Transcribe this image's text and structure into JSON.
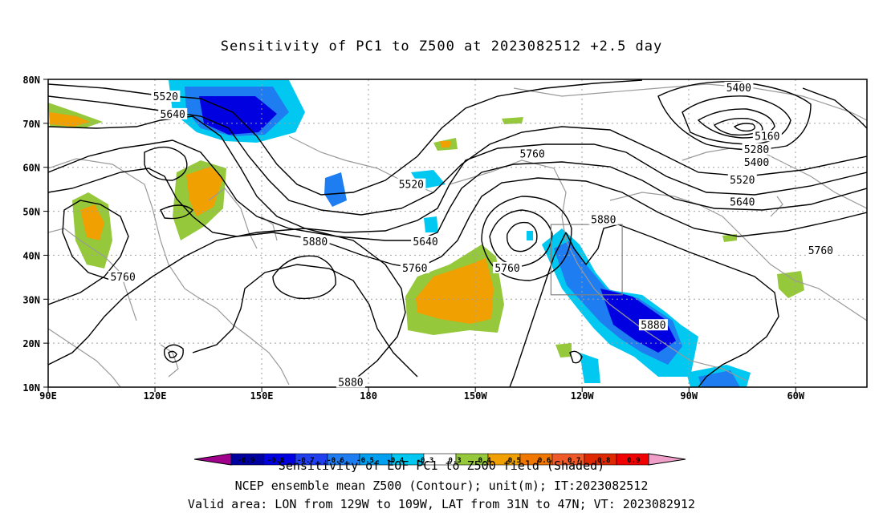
{
  "title": "Sensitivity of PC1 to Z500 at 2023082512 +2.5 day",
  "map": {
    "lat_ticks": [
      "80N",
      "70N",
      "60N",
      "50N",
      "40N",
      "30N",
      "20N",
      "10N"
    ],
    "lon_ticks": [
      "90E",
      "120E",
      "150E",
      "180",
      "150W",
      "120W",
      "90W",
      "60W"
    ],
    "extent": {
      "lon_min": 90,
      "lon_max": 320,
      "lat_min": 10,
      "lat_max": 80
    },
    "valid_area_box": {
      "lon_min": 231,
      "lon_max": 251,
      "lat_min": 31,
      "lat_max": 47
    },
    "contour_labels": [
      {
        "text": "5400",
        "lon": 284,
        "lat": 78
      },
      {
        "text": "5520",
        "lon": 123,
        "lat": 76
      },
      {
        "text": "5640",
        "lon": 125,
        "lat": 72
      },
      {
        "text": "5160",
        "lon": 292,
        "lat": 67
      },
      {
        "text": "5280",
        "lon": 289,
        "lat": 64
      },
      {
        "text": "5400",
        "lon": 289,
        "lat": 61
      },
      {
        "text": "5520",
        "lon": 285,
        "lat": 57
      },
      {
        "text": "5640",
        "lon": 285,
        "lat": 52
      },
      {
        "text": "5760",
        "lon": 226,
        "lat": 63
      },
      {
        "text": "5520",
        "lon": 192,
        "lat": 56
      },
      {
        "text": "5640",
        "lon": 196,
        "lat": 43
      },
      {
        "text": "5760",
        "lon": 193,
        "lat": 37
      },
      {
        "text": "5760",
        "lon": 219,
        "lat": 37
      },
      {
        "text": "5880",
        "lon": 246,
        "lat": 48
      },
      {
        "text": "5880",
        "lon": 165,
        "lat": 43
      },
      {
        "text": "5760",
        "lon": 111,
        "lat": 35
      },
      {
        "text": "5880",
        "lon": 260,
        "lat": 24
      },
      {
        "text": "5760",
        "lon": 307,
        "lat": 41
      },
      {
        "text": "5880",
        "lon": 175,
        "lat": 11
      }
    ]
  },
  "colorbar": {
    "labels": [
      "-0.9",
      "-0.8",
      "-0.7",
      "-0.6",
      "-0.5",
      "-0.4",
      "-0.3",
      "0.3",
      "0.4",
      "0.5",
      "0.6",
      "0.7",
      "0.8",
      "0.9"
    ],
    "colors": [
      "#a0008c",
      "#0000a0",
      "#0000e0",
      "#2040f0",
      "#1e7df0",
      "#00a0f0",
      "#00c8f0",
      "#ffffff",
      "#96c83c",
      "#f0a000",
      "#f07800",
      "#f05a28",
      "#e02800",
      "#f00000",
      "#f0a0c8"
    ]
  },
  "captions": {
    "line1": "Sensitivity of EOF PC1 to Z500 field (Shaded)",
    "line2": "NCEP ensemble mean Z500 (Contour); unit(m); IT:2023082512",
    "line3": "Valid area: LON from 129W to 109W, LAT from 31N to 47N; VT: 2023082912"
  }
}
